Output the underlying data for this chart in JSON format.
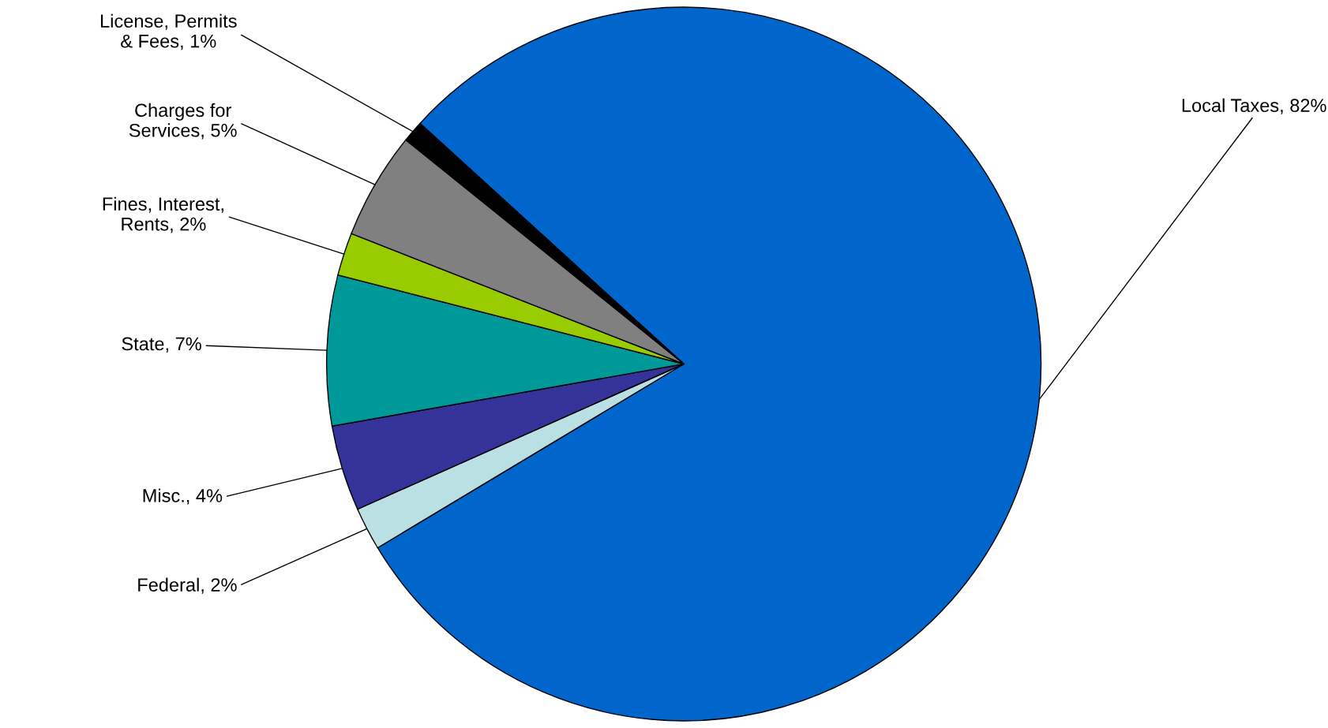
{
  "chart_data": {
    "type": "pie",
    "categories": [
      "Local Taxes",
      "Federal",
      "Misc.",
      "State",
      "Fines, Interest, Rents",
      "Charges for Services",
      "License, Permits & Fees"
    ],
    "values": [
      82,
      2,
      4,
      7,
      2,
      5,
      1
    ],
    "value_labels": [
      "82%",
      "2%",
      "4%",
      "7%",
      "2%",
      "5%",
      "1%"
    ],
    "colors": [
      "#0066cc",
      "#bbe0e3",
      "#333399",
      "#009999",
      "#99cc00",
      "#808080",
      "#000000"
    ],
    "legend": false
  }
}
